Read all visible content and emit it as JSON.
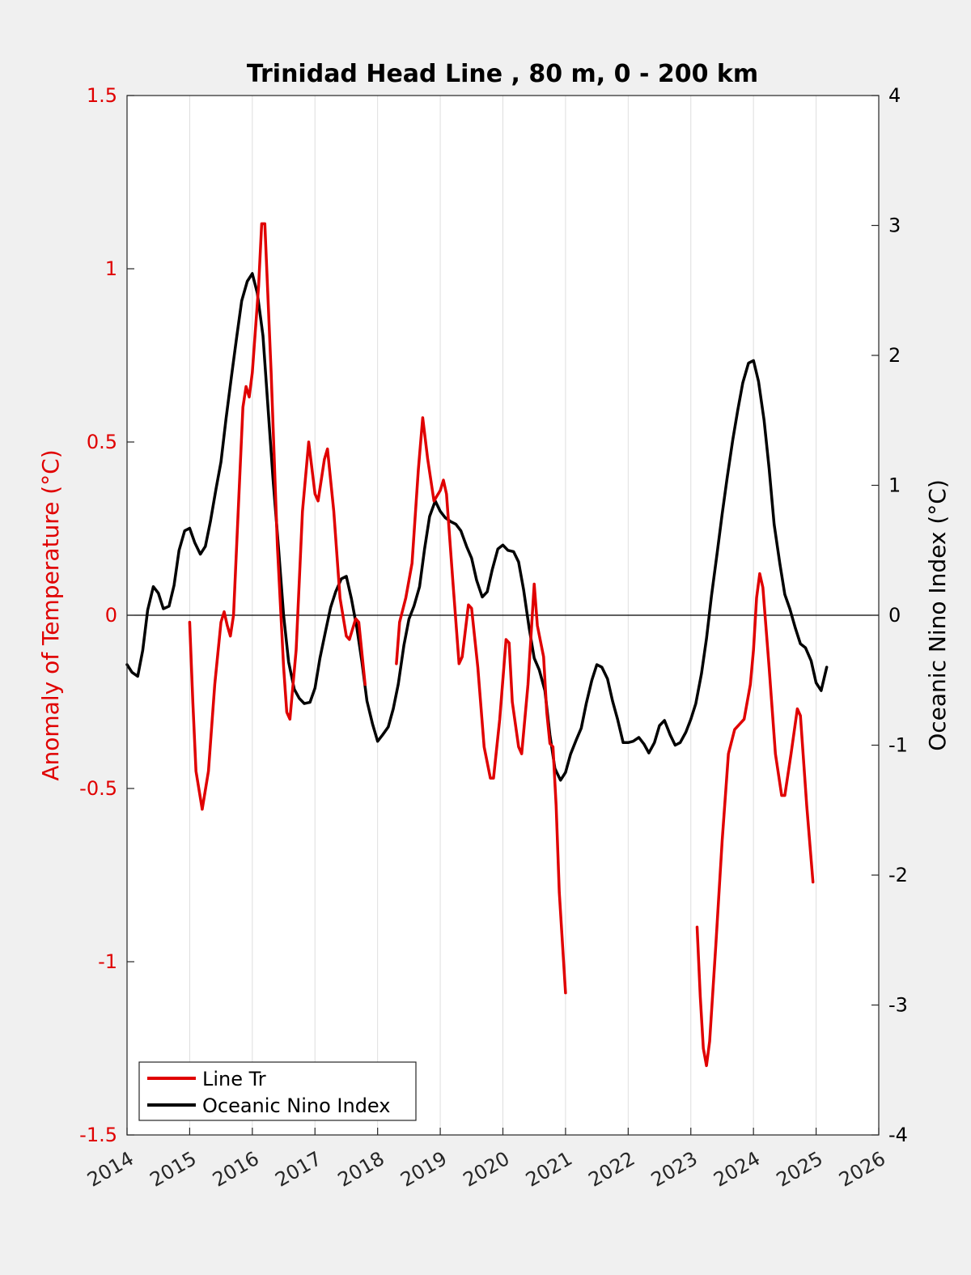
{
  "chart_data": {
    "type": "line",
    "title": "Trinidad Head Line , 80 m, 0 - 200 km",
    "ylabel_left": "Anomaly of Temperature (°C)",
    "ylabel_right": "Oceanic Nino Index (°C)",
    "xlabel": "",
    "xlim": [
      2014,
      2026
    ],
    "ylim_left": [
      -1.5,
      1.5
    ],
    "ylim_right": [
      -4,
      4
    ],
    "x_ticks": [
      "2014",
      "2015",
      "2016",
      "2017",
      "2018",
      "2019",
      "2020",
      "2021",
      "2022",
      "2023",
      "2024",
      "2025",
      "2026"
    ],
    "y_ticks_left": [
      "1.5",
      "1",
      "0.5",
      "0",
      "-0.5",
      "-1",
      "-1.5"
    ],
    "y_ticks_right": [
      "4",
      "3",
      "2",
      "1",
      "0",
      "-1",
      "-2",
      "-3",
      "-4"
    ],
    "grid": "vertical",
    "zero_line": true,
    "legend_position": "bottom-left",
    "colors": {
      "line_tr": "#e00000",
      "oni": "#000000",
      "left_axis": "#e00000"
    },
    "series": [
      {
        "name": "Line Tr",
        "axis": "left",
        "segments": [
          [
            [
              2015.0,
              -0.02
            ],
            [
              2015.05,
              -0.25
            ],
            [
              2015.1,
              -0.45
            ],
            [
              2015.2,
              -0.56
            ],
            [
              2015.3,
              -0.45
            ],
            [
              2015.4,
              -0.2
            ],
            [
              2015.5,
              -0.02
            ],
            [
              2015.55,
              0.01
            ],
            [
              2015.6,
              -0.03
            ],
            [
              2015.65,
              -0.06
            ],
            [
              2015.7,
              0.0
            ],
            [
              2015.8,
              0.4
            ],
            [
              2015.85,
              0.6
            ],
            [
              2015.9,
              0.66
            ],
            [
              2015.95,
              0.63
            ],
            [
              2016.0,
              0.7
            ],
            [
              2016.1,
              0.95
            ],
            [
              2016.15,
              1.13
            ],
            [
              2016.2,
              1.13
            ],
            [
              2016.3,
              0.7
            ],
            [
              2016.4,
              0.2
            ],
            [
              2016.5,
              -0.15
            ],
            [
              2016.55,
              -0.28
            ],
            [
              2016.6,
              -0.3
            ],
            [
              2016.7,
              -0.1
            ],
            [
              2016.8,
              0.3
            ],
            [
              2016.9,
              0.5
            ],
            [
              2017.0,
              0.35
            ],
            [
              2017.05,
              0.33
            ],
            [
              2017.15,
              0.45
            ],
            [
              2017.2,
              0.48
            ],
            [
              2017.3,
              0.3
            ],
            [
              2017.4,
              0.05
            ],
            [
              2017.5,
              -0.06
            ],
            [
              2017.55,
              -0.07
            ],
            [
              2017.65,
              -0.01
            ],
            [
              2017.7,
              -0.02
            ],
            [
              2017.8,
              -0.2
            ]
          ],
          [
            [
              2018.3,
              -0.14
            ],
            [
              2018.35,
              -0.02
            ],
            [
              2018.45,
              0.05
            ],
            [
              2018.55,
              0.15
            ],
            [
              2018.65,
              0.42
            ],
            [
              2018.72,
              0.57
            ],
            [
              2018.8,
              0.45
            ],
            [
              2018.9,
              0.33
            ],
            [
              2019.0,
              0.36
            ],
            [
              2019.05,
              0.39
            ],
            [
              2019.1,
              0.35
            ],
            [
              2019.2,
              0.1
            ],
            [
              2019.3,
              -0.14
            ],
            [
              2019.35,
              -0.12
            ],
            [
              2019.45,
              0.03
            ],
            [
              2019.5,
              0.02
            ],
            [
              2019.6,
              -0.15
            ],
            [
              2019.7,
              -0.38
            ],
            [
              2019.8,
              -0.47
            ],
            [
              2019.85,
              -0.47
            ],
            [
              2019.95,
              -0.3
            ],
            [
              2020.05,
              -0.07
            ],
            [
              2020.1,
              -0.08
            ],
            [
              2020.15,
              -0.25
            ],
            [
              2020.25,
              -0.38
            ],
            [
              2020.3,
              -0.4
            ],
            [
              2020.4,
              -0.2
            ],
            [
              2020.5,
              0.09
            ],
            [
              2020.55,
              -0.03
            ],
            [
              2020.65,
              -0.12
            ],
            [
              2020.7,
              -0.28
            ],
            [
              2020.75,
              -0.37
            ],
            [
              2020.8,
              -0.38
            ],
            [
              2020.85,
              -0.55
            ],
            [
              2020.9,
              -0.8
            ],
            [
              2021.0,
              -1.09
            ]
          ],
          [
            [
              2023.1,
              -0.9
            ],
            [
              2023.15,
              -1.1
            ],
            [
              2023.2,
              -1.25
            ],
            [
              2023.25,
              -1.3
            ],
            [
              2023.3,
              -1.23
            ],
            [
              2023.4,
              -0.95
            ],
            [
              2023.5,
              -0.65
            ],
            [
              2023.6,
              -0.4
            ],
            [
              2023.7,
              -0.33
            ],
            [
              2023.8,
              -0.31
            ],
            [
              2023.85,
              -0.3
            ],
            [
              2023.95,
              -0.2
            ],
            [
              2024.0,
              -0.1
            ],
            [
              2024.05,
              0.05
            ],
            [
              2024.1,
              0.12
            ],
            [
              2024.15,
              0.08
            ],
            [
              2024.25,
              -0.15
            ],
            [
              2024.35,
              -0.4
            ],
            [
              2024.45,
              -0.52
            ],
            [
              2024.5,
              -0.52
            ],
            [
              2024.6,
              -0.4
            ],
            [
              2024.7,
              -0.27
            ],
            [
              2024.75,
              -0.29
            ],
            [
              2024.85,
              -0.55
            ],
            [
              2024.95,
              -0.77
            ]
          ]
        ]
      },
      {
        "name": "Oceanic Nino Index",
        "axis": "right",
        "segments": [
          [
            [
              2014.0,
              -0.38
            ],
            [
              2014.08,
              -0.44
            ],
            [
              2014.17,
              -0.47
            ],
            [
              2014.25,
              -0.27
            ],
            [
              2014.33,
              0.04
            ],
            [
              2014.42,
              0.22
            ],
            [
              2014.5,
              0.17
            ],
            [
              2014.58,
              0.05
            ],
            [
              2014.67,
              0.07
            ],
            [
              2014.75,
              0.23
            ],
            [
              2014.83,
              0.5
            ],
            [
              2014.92,
              0.65
            ],
            [
              2015.0,
              0.67
            ],
            [
              2015.08,
              0.56
            ],
            [
              2015.17,
              0.47
            ],
            [
              2015.25,
              0.53
            ],
            [
              2015.33,
              0.72
            ],
            [
              2015.42,
              0.97
            ],
            [
              2015.5,
              1.18
            ],
            [
              2015.58,
              1.51
            ],
            [
              2015.67,
              1.85
            ],
            [
              2015.75,
              2.14
            ],
            [
              2015.83,
              2.42
            ],
            [
              2015.92,
              2.57
            ],
            [
              2016.0,
              2.63
            ],
            [
              2016.08,
              2.48
            ],
            [
              2016.17,
              2.15
            ],
            [
              2016.25,
              1.6
            ],
            [
              2016.33,
              1.05
            ],
            [
              2016.42,
              0.51
            ],
            [
              2016.5,
              0.0
            ],
            [
              2016.58,
              -0.36
            ],
            [
              2016.67,
              -0.57
            ],
            [
              2016.75,
              -0.64
            ],
            [
              2016.83,
              -0.68
            ],
            [
              2016.92,
              -0.67
            ],
            [
              2017.0,
              -0.56
            ],
            [
              2017.08,
              -0.33
            ],
            [
              2017.17,
              -0.12
            ],
            [
              2017.25,
              0.06
            ],
            [
              2017.33,
              0.18
            ],
            [
              2017.42,
              0.28
            ],
            [
              2017.5,
              0.3
            ],
            [
              2017.58,
              0.13
            ],
            [
              2017.67,
              -0.1
            ],
            [
              2017.75,
              -0.36
            ],
            [
              2017.83,
              -0.66
            ],
            [
              2017.92,
              -0.84
            ],
            [
              2018.0,
              -0.97
            ],
            [
              2018.08,
              -0.92
            ],
            [
              2018.17,
              -0.86
            ],
            [
              2018.25,
              -0.72
            ],
            [
              2018.33,
              -0.53
            ],
            [
              2018.42,
              -0.23
            ],
            [
              2018.5,
              -0.03
            ],
            [
              2018.58,
              0.07
            ],
            [
              2018.67,
              0.22
            ],
            [
              2018.75,
              0.51
            ],
            [
              2018.83,
              0.76
            ],
            [
              2018.92,
              0.88
            ],
            [
              2019.0,
              0.8
            ],
            [
              2019.08,
              0.75
            ],
            [
              2019.17,
              0.72
            ],
            [
              2019.25,
              0.7
            ],
            [
              2019.33,
              0.65
            ],
            [
              2019.42,
              0.53
            ],
            [
              2019.5,
              0.44
            ],
            [
              2019.58,
              0.27
            ],
            [
              2019.67,
              0.14
            ],
            [
              2019.75,
              0.18
            ],
            [
              2019.83,
              0.35
            ],
            [
              2019.92,
              0.51
            ],
            [
              2020.0,
              0.54
            ],
            [
              2020.08,
              0.5
            ],
            [
              2020.17,
              0.49
            ],
            [
              2020.25,
              0.41
            ],
            [
              2020.33,
              0.2
            ],
            [
              2020.42,
              -0.1
            ],
            [
              2020.5,
              -0.33
            ],
            [
              2020.58,
              -0.42
            ],
            [
              2020.67,
              -0.58
            ],
            [
              2020.75,
              -0.92
            ],
            [
              2020.83,
              -1.18
            ],
            [
              2020.92,
              -1.27
            ],
            [
              2021.0,
              -1.21
            ],
            [
              2021.08,
              -1.07
            ],
            [
              2021.17,
              -0.96
            ],
            [
              2021.25,
              -0.87
            ],
            [
              2021.33,
              -0.68
            ],
            [
              2021.42,
              -0.5
            ],
            [
              2021.5,
              -0.38
            ],
            [
              2021.58,
              -0.4
            ],
            [
              2021.67,
              -0.49
            ],
            [
              2021.75,
              -0.66
            ],
            [
              2021.83,
              -0.8
            ],
            [
              2021.92,
              -0.98
            ],
            [
              2022.0,
              -0.98
            ],
            [
              2022.08,
              -0.97
            ],
            [
              2022.17,
              -0.94
            ],
            [
              2022.25,
              -0.99
            ],
            [
              2022.33,
              -1.06
            ],
            [
              2022.42,
              -0.98
            ],
            [
              2022.5,
              -0.85
            ],
            [
              2022.58,
              -0.81
            ],
            [
              2022.67,
              -0.92
            ],
            [
              2022.75,
              -1.0
            ],
            [
              2022.83,
              -0.98
            ],
            [
              2022.92,
              -0.9
            ],
            [
              2023.0,
              -0.8
            ],
            [
              2023.08,
              -0.68
            ],
            [
              2023.17,
              -0.45
            ],
            [
              2023.25,
              -0.18
            ],
            [
              2023.33,
              0.15
            ],
            [
              2023.42,
              0.48
            ],
            [
              2023.5,
              0.78
            ],
            [
              2023.58,
              1.06
            ],
            [
              2023.67,
              1.35
            ],
            [
              2023.75,
              1.58
            ],
            [
              2023.83,
              1.79
            ],
            [
              2023.92,
              1.94
            ],
            [
              2024.0,
              1.96
            ],
            [
              2024.08,
              1.8
            ],
            [
              2024.17,
              1.5
            ],
            [
              2024.25,
              1.13
            ],
            [
              2024.33,
              0.7
            ],
            [
              2024.42,
              0.4
            ],
            [
              2024.5,
              0.16
            ],
            [
              2024.58,
              0.05
            ],
            [
              2024.67,
              -0.1
            ],
            [
              2024.75,
              -0.22
            ],
            [
              2024.83,
              -0.25
            ],
            [
              2024.92,
              -0.35
            ],
            [
              2025.0,
              -0.52
            ],
            [
              2025.08,
              -0.58
            ],
            [
              2025.17,
              -0.4
            ]
          ]
        ]
      }
    ]
  }
}
